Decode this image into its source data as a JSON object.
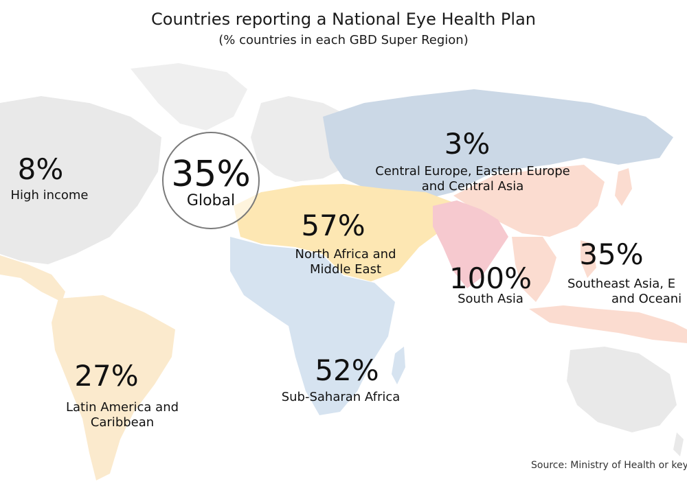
{
  "title": "Countries reporting a National Eye Health Plan",
  "subtitle": "(% countries in each GBD Super Region)",
  "source": "Source: Ministry of Health or key",
  "colors": {
    "background": "#ffffff",
    "base_land": "#ececec",
    "high_income": "#e6e6e6",
    "latin_america": "#fbeacd",
    "north_africa_middle_east": "#fde7b3",
    "sub_saharan_africa": "#d6e3f0",
    "central_europe_asia": "#cbd8e6",
    "south_asia": "#f6c9cf",
    "southeast_asia_oceania": "#fbdcd0"
  },
  "global": {
    "value": "35%",
    "label": "Global"
  },
  "regions": [
    {
      "id": "high-income",
      "value": "8%",
      "name_lines": [
        "High income"
      ]
    },
    {
      "id": "central-europe-asia",
      "value": "3%",
      "name_lines": [
        "Central Europe, Eastern Europe",
        "and Central Asia"
      ]
    },
    {
      "id": "north-africa-middle-east",
      "value": "57%",
      "name_lines": [
        "North Africa and",
        "Middle East"
      ]
    },
    {
      "id": "south-asia",
      "value": "100%",
      "name_lines": [
        "South Asia"
      ]
    },
    {
      "id": "southeast-asia",
      "value": "35%",
      "name_lines": [
        "Southeast Asia, E",
        "and Oceani"
      ]
    },
    {
      "id": "latin-america",
      "value": "27%",
      "name_lines": [
        "Latin America and",
        "Caribbean"
      ]
    },
    {
      "id": "sub-saharan-africa",
      "value": "52%",
      "name_lines": [
        "Sub-Saharan Africa"
      ]
    }
  ]
}
